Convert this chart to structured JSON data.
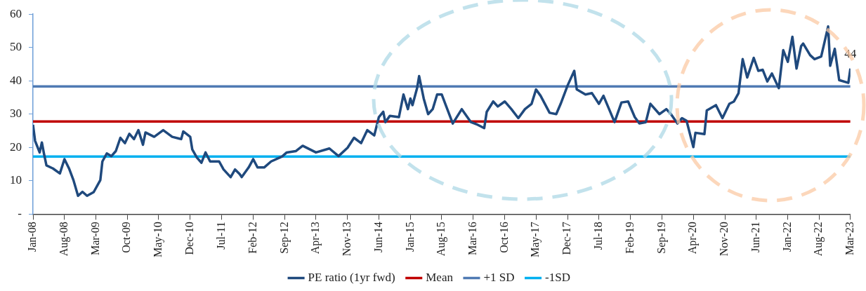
{
  "chart_data": {
    "type": "line",
    "xlim": [
      "2008-01-01",
      "2023-03-01"
    ],
    "xticks": [
      {
        "value": "2008-01",
        "label": "Jan-08"
      },
      {
        "value": "2008-08",
        "label": "Aug-08"
      },
      {
        "value": "2009-03",
        "label": "Mar-09"
      },
      {
        "value": "2009-10",
        "label": "Oct-09"
      },
      {
        "value": "2010-05",
        "label": "May-10"
      },
      {
        "value": "2010-12",
        "label": "Dec-10"
      },
      {
        "value": "2011-07",
        "label": "Jul-11"
      },
      {
        "value": "2012-02",
        "label": "Feb-12"
      },
      {
        "value": "2012-09",
        "label": "Sep-12"
      },
      {
        "value": "2013-04",
        "label": "Apr-13"
      },
      {
        "value": "2013-11",
        "label": "Nov-13"
      },
      {
        "value": "2014-06",
        "label": "Jun-14"
      },
      {
        "value": "2015-01",
        "label": "Jan-15"
      },
      {
        "value": "2015-08",
        "label": "Aug-15"
      },
      {
        "value": "2016-03",
        "label": "Mar-16"
      },
      {
        "value": "2016-10",
        "label": "Oct-16"
      },
      {
        "value": "2017-05",
        "label": "May-17"
      },
      {
        "value": "2017-12",
        "label": "Dec-17"
      },
      {
        "value": "2018-07",
        "label": "Jul-18"
      },
      {
        "value": "2019-02",
        "label": "Feb-19"
      },
      {
        "value": "2019-09",
        "label": "Sep-19"
      },
      {
        "value": "2020-04",
        "label": "Apr-20"
      },
      {
        "value": "2020-11",
        "label": "Nov-20"
      },
      {
        "value": "2021-06",
        "label": "Jun-21"
      },
      {
        "value": "2022-01",
        "label": "Jan-22"
      },
      {
        "value": "2022-08",
        "label": "Aug-22"
      },
      {
        "value": "2023-03",
        "label": "Mar-23"
      }
    ],
    "ylim": [
      0,
      60
    ],
    "yticks": [
      {
        "value": 0,
        "label": "-"
      },
      10,
      20,
      30,
      40,
      50,
      60
    ],
    "grid": false,
    "legend": "bottom",
    "marker": "none",
    "line_style": "solid",
    "annotations": [
      {
        "text": "44",
        "x": "2023-03-01",
        "y": 43.7
      }
    ],
    "series": [
      {
        "name": "PE ratio (1yr fwd)",
        "color": "#1f497d",
        "x": [
          "2008-01-01",
          "2008-01-15",
          "2008-02-15",
          "2008-03-01",
          "2008-03-15",
          "2008-04-01",
          "2008-05-15",
          "2008-07-01",
          "2008-08-01",
          "2008-09-01",
          "2008-10-01",
          "2008-11-01",
          "2008-12-01",
          "2009-01-01",
          "2009-02-15",
          "2009-04-01",
          "2009-04-15",
          "2009-05-15",
          "2009-06-15",
          "2009-07-15",
          "2009-08-15",
          "2009-09-15",
          "2009-10-15",
          "2009-11-15",
          "2009-12-15",
          "2010-01-15",
          "2010-02-01",
          "2010-04-01",
          "2010-06-01",
          "2010-08-01",
          "2010-10-01",
          "2010-10-15",
          "2010-12-01",
          "2010-12-15",
          "2011-01-15",
          "2011-02-15",
          "2011-03-15",
          "2011-04-15",
          "2011-06-15",
          "2011-07-15",
          "2011-09-01",
          "2011-10-01",
          "2011-11-01",
          "2011-11-15",
          "2012-01-01",
          "2012-02-01",
          "2012-03-01",
          "2012-04-15",
          "2012-06-01",
          "2012-08-15",
          "2012-09-15",
          "2012-11-15",
          "2013-01-01",
          "2013-04-01",
          "2013-07-01",
          "2013-09-01",
          "2013-11-01",
          "2013-12-15",
          "2014-02-01",
          "2014-03-15",
          "2014-05-01",
          "2014-06-01",
          "2014-07-01",
          "2014-07-15",
          "2014-08-15",
          "2014-10-15",
          "2014-11-15",
          "2014-12-15",
          "2015-01-01",
          "2015-01-15",
          "2015-02-15",
          "2015-03-01",
          "2015-04-01",
          "2015-05-01",
          "2015-06-01",
          "2015-07-01",
          "2015-08-01",
          "2015-09-01",
          "2015-10-15",
          "2015-12-15",
          "2016-02-15",
          "2016-04-01",
          "2016-05-15",
          "2016-06-01",
          "2016-07-15",
          "2016-08-15",
          "2016-10-01",
          "2016-11-15",
          "2017-01-01",
          "2017-02-15",
          "2017-04-01",
          "2017-05-01",
          "2017-06-01",
          "2017-08-01",
          "2017-09-15",
          "2017-10-15",
          "2017-12-01",
          "2018-01-15",
          "2018-02-01",
          "2018-04-01",
          "2018-05-15",
          "2018-07-01",
          "2018-08-01",
          "2018-10-15",
          "2018-12-01",
          "2019-01-15",
          "2019-03-01",
          "2019-04-01",
          "2019-05-15",
          "2019-06-15",
          "2019-08-15",
          "2019-10-01",
          "2019-11-01",
          "2019-12-15",
          "2020-01-15",
          "2020-02-15",
          "2020-04-01",
          "2020-04-15",
          "2020-06-15",
          "2020-07-01",
          "2020-09-01",
          "2020-10-15",
          "2020-12-01",
          "2021-01-01",
          "2021-02-01",
          "2021-03-01",
          "2021-04-01",
          "2021-05-15",
          "2021-06-15",
          "2021-07-15",
          "2021-08-15",
          "2021-09-15",
          "2021-11-01",
          "2021-12-01",
          "2022-01-01",
          "2022-02-01",
          "2022-03-01",
          "2022-04-01",
          "2022-04-15",
          "2022-06-01",
          "2022-07-01",
          "2022-08-15",
          "2022-10-01",
          "2022-10-15",
          "2022-11-15",
          "2022-12-15",
          "2023-02-15",
          "2023-03-01"
        ],
        "values": [
          26.8,
          22,
          18.5,
          21.5,
          18.2,
          14.6,
          13.7,
          12.2,
          16.5,
          13.7,
          10.2,
          5.5,
          6.7,
          5.5,
          6.6,
          10.2,
          15.8,
          18.2,
          17.4,
          18.9,
          22.9,
          21.3,
          24.1,
          22.5,
          25.2,
          20.8,
          24.5,
          23.2,
          25.2,
          23.2,
          22.5,
          24.8,
          23.2,
          19.4,
          17,
          15.4,
          18.5,
          15.8,
          15.8,
          13.4,
          11.1,
          13.4,
          12,
          11.1,
          14,
          16.5,
          14,
          14,
          15.8,
          17.3,
          18.5,
          18.9,
          20.5,
          18.5,
          19.7,
          17.4,
          19.9,
          22.9,
          21.3,
          25.2,
          23.6,
          29.1,
          30.7,
          27.6,
          29.5,
          29.1,
          35.9,
          31.5,
          34.7,
          32.7,
          37.8,
          41.4,
          34.7,
          30,
          31.5,
          35.9,
          35.9,
          32.3,
          27.2,
          31.5,
          27.6,
          26.8,
          25.8,
          30.7,
          33.8,
          32.3,
          33.8,
          31.5,
          28.8,
          31.5,
          33.1,
          37.4,
          35.5,
          30.4,
          30,
          33.1,
          38.6,
          43,
          37.4,
          35.9,
          36.3,
          33.1,
          35.5,
          27.6,
          33.5,
          33.8,
          29.1,
          27.2,
          27.6,
          33.1,
          30,
          31.5,
          30,
          27.2,
          28.8,
          28,
          20.1,
          24.4,
          24,
          31.1,
          32.7,
          28.8,
          33.1,
          33.8,
          36.3,
          46.5,
          41,
          46.9,
          43,
          43.3,
          39.8,
          42.2,
          37.8,
          49.2,
          45.7,
          53.2,
          43.7,
          50.4,
          51.2,
          47.7,
          46.5,
          47.3,
          56.3,
          44.5,
          49.6,
          40.2,
          39.4,
          43.7
        ]
      },
      {
        "name": "Mean",
        "color": "#c00000",
        "x": [
          "2008-01-01",
          "2023-03-01"
        ],
        "values": [
          27.8,
          27.8
        ]
      },
      {
        "name": "+1 SD",
        "color": "#4f7ab3",
        "x": [
          "2008-01-01",
          "2023-03-01"
        ],
        "values": [
          38.3,
          38.3
        ]
      },
      {
        "name": "-1SD",
        "color": "#00b0f0",
        "x": [
          "2008-01-01",
          "2023-03-01"
        ],
        "values": [
          17.3,
          17.3
        ]
      }
    ]
  }
}
